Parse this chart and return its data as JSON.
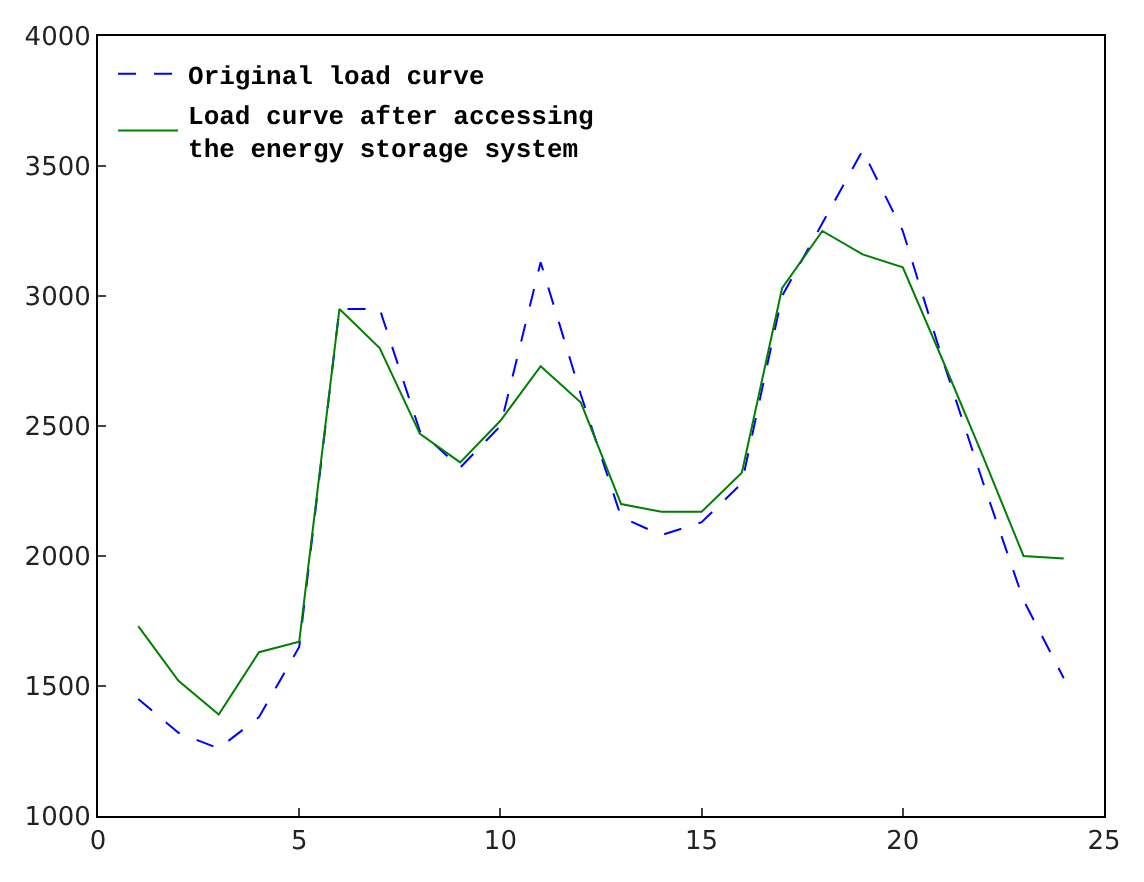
{
  "chart_data": {
    "type": "line",
    "x": [
      1,
      2,
      3,
      4,
      5,
      6,
      7,
      8,
      9,
      10,
      11,
      12,
      13,
      14,
      15,
      16,
      17,
      18,
      19,
      20,
      21,
      22,
      23,
      24
    ],
    "series": [
      {
        "name": "Original load curve",
        "color": "#0000ff",
        "line_style": "dashed",
        "values": [
          1450,
          1320,
          1260,
          1380,
          1650,
          2950,
          2950,
          2480,
          2340,
          2500,
          3130,
          2620,
          2150,
          2080,
          2130,
          2280,
          3000,
          3280,
          3560,
          3250,
          2750,
          2280,
          1830,
          1530
        ]
      },
      {
        "name": "Load curve after accessing\nthe energy storage system",
        "color": "#008000",
        "line_style": "solid",
        "values": [
          1730,
          1520,
          1390,
          1630,
          1670,
          2950,
          2800,
          2470,
          2360,
          2520,
          2730,
          2590,
          2200,
          2170,
          2170,
          2320,
          3030,
          3250,
          3160,
          3110,
          2750,
          2380,
          2000,
          1990
        ]
      }
    ],
    "xlim": [
      0,
      25
    ],
    "xticks": [
      0,
      5,
      10,
      15,
      20,
      25
    ],
    "ylim": [
      1000,
      4000
    ],
    "yticks": [
      1000,
      1500,
      2000,
      2500,
      3000,
      3500,
      4000
    ],
    "legend": "top left",
    "marker": "none"
  }
}
